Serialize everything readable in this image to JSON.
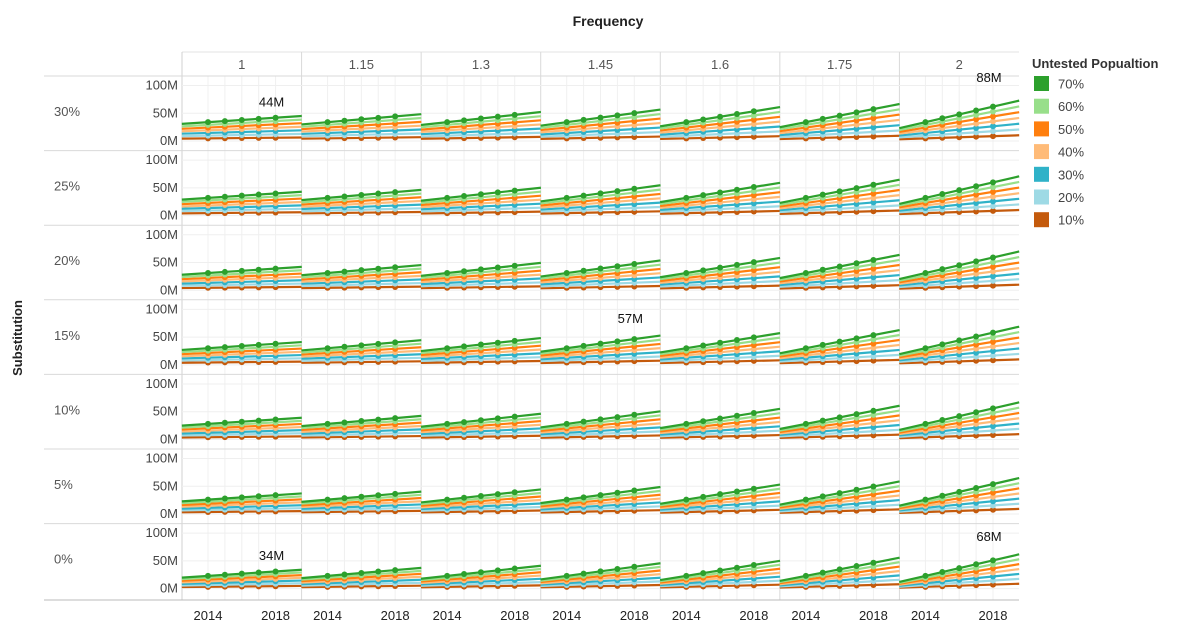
{
  "chart_data": {
    "type": "line",
    "title": "Frequency",
    "row_axis_label": "Substitution",
    "columns": [
      "1",
      "1.15",
      "1.3",
      "1.45",
      "1.6",
      "1.75",
      "2"
    ],
    "rows": [
      "30%",
      "25%",
      "20%",
      "15%",
      "10%",
      "5%",
      "0%"
    ],
    "x": [
      2014,
      2015,
      2016,
      2017,
      2018
    ],
    "x_tick_labels": [
      "2014",
      "2018"
    ],
    "y_tick_labels": [
      "100M",
      "50M",
      "0M"
    ],
    "ylim": [
      -10,
      110
    ],
    "legend": {
      "title": "Untested Popualtion",
      "placement": "top-right",
      "series": [
        {
          "name": "70%",
          "color": "#2ca02c",
          "share": 0.7
        },
        {
          "name": "60%",
          "color": "#98df8a",
          "share": 0.6
        },
        {
          "name": "50%",
          "color": "#ff7f0e",
          "share": 0.5
        },
        {
          "name": "40%",
          "color": "#ffbb78",
          "share": 0.4
        },
        {
          "name": "30%",
          "color": "#2fb2c8",
          "share": 0.3
        },
        {
          "name": "20%",
          "color": "#9edae5",
          "share": 0.2
        },
        {
          "name": "10%",
          "color": "#c45a0c",
          "share": 0.1
        }
      ]
    },
    "top_series_base_2014_by_row": [
      34,
      32,
      31,
      30,
      28,
      26,
      23
    ],
    "top_series_slope_by_column": [
      2.0,
      2.6,
      3.3,
      4.1,
      4.9,
      5.9,
      7.0
    ],
    "annotations": [
      {
        "row": "30%",
        "column": "1",
        "x": 2018,
        "value": 44,
        "text": "44M"
      },
      {
        "row": "30%",
        "column": "2",
        "x": 2018,
        "value": 88,
        "text": "88M"
      },
      {
        "row": "15%",
        "column": "1.45",
        "x": 2018,
        "value": 57,
        "text": "57M"
      },
      {
        "row": "0%",
        "column": "1",
        "x": 2018,
        "value": 34,
        "text": "34M"
      },
      {
        "row": "0%",
        "column": "2",
        "x": 2018,
        "value": 68,
        "text": "68M"
      }
    ]
  }
}
